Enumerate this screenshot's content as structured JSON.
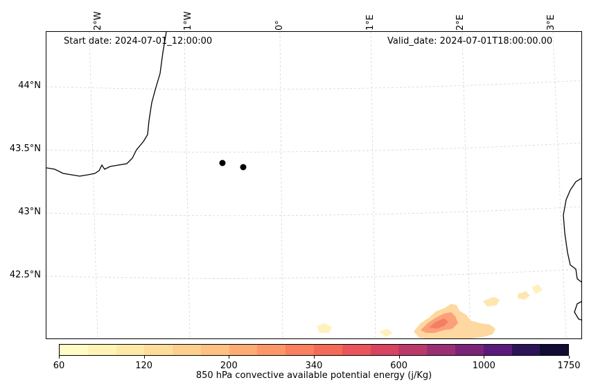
{
  "header": {
    "start_date": "Start date: 2024-07-01_12:00:00",
    "valid_date": "Valid_date: 2024-07-01T18:00:00.00"
  },
  "longitude_labels": [
    "2°W",
    "1°W",
    "0°",
    "1°E",
    "2°E",
    "3°E"
  ],
  "latitude_labels": [
    "44°N",
    "43.5°N",
    "43°N",
    "42.5°N"
  ],
  "colorbar": {
    "title": "850 hPa convective available potential energy (j/Kg)",
    "tick_labels": [
      "60",
      "120",
      "200",
      "340",
      "600",
      "1000",
      "1750"
    ],
    "colors": [
      "#fffcc4",
      "#fff4b6",
      "#fee9a7",
      "#fedd9a",
      "#fecf8c",
      "#fec182",
      "#fdac74",
      "#fd9768",
      "#fa7f5e",
      "#f46a58",
      "#e9555a",
      "#d6445f",
      "#b93a6a",
      "#9a3073",
      "#7a2479",
      "#591a7b",
      "#2c1357",
      "#110c33"
    ]
  },
  "map": {
    "features": [
      "coastline",
      "gridlines",
      "station-markers",
      "cape-field"
    ],
    "markers": [
      {
        "name": "station-1",
        "lat": 43.38,
        "lon": -0.55
      },
      {
        "name": "station-2",
        "lat": 43.36,
        "lon": -0.33
      }
    ]
  }
}
